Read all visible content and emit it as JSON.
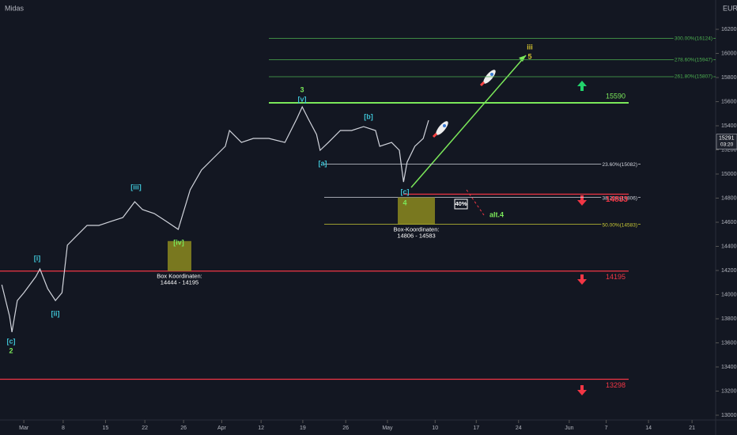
{
  "chart_data": {
    "type": "line",
    "title": "Midas",
    "currency": "EUR",
    "color": "#d1d4dc",
    "x": [
      -3.7,
      -2.4,
      -2.0,
      -1.1,
      0,
      2.0,
      2.7,
      4.0,
      5.3,
      6.4,
      7.3,
      8.6,
      10.6,
      12.6,
      14.6,
      16.6,
      18.6,
      19.9,
      21.9,
      23.9,
      25.9,
      26.5,
      27.9,
      29.8,
      31.8,
      33.8,
      34.5,
      36.5,
      38.5,
      41.1,
      43.8,
      45.8,
      46.7,
      47.7,
      49.1,
      49.7,
      51.1,
      53.1,
      55.0,
      57.0,
      59.0,
      59.7,
      61.7,
      63.0,
      63.7,
      64.3,
      65.6,
      67.0,
      67.9
    ],
    "values": [
      14082,
      13820,
      13689,
      13951,
      14016,
      14148,
      14213,
      14049,
      13951,
      14016,
      14410,
      14475,
      14574,
      14574,
      14607,
      14639,
      14770,
      14705,
      14672,
      14607,
      14541,
      14639,
      14869,
      15033,
      15131,
      15230,
      15361,
      15262,
      15295,
      15295,
      15262,
      15459,
      15557,
      15459,
      15328,
      15197,
      15262,
      15361,
      15361,
      15393,
      15361,
      15230,
      15262,
      15197,
      14934,
      15098,
      15230,
      15295,
      15446
    ],
    "xlim": [
      -4.0,
      115.4
    ],
    "ylim": [
      12967,
      16443
    ],
    "yticks": [
      13000,
      13200,
      13400,
      13600,
      13800,
      14000,
      14200,
      14400,
      14600,
      14800,
      15000,
      15200,
      15400,
      15600,
      15800,
      16000,
      16200
    ],
    "xticks": [
      {
        "value": 0,
        "label": "Mar"
      },
      {
        "value": 6.6,
        "label": "8"
      },
      {
        "value": 13.7,
        "label": "15"
      },
      {
        "value": 20.3,
        "label": "22"
      },
      {
        "value": 26.8,
        "label": "26"
      },
      {
        "value": 33.2,
        "label": "Apr"
      },
      {
        "value": 39.8,
        "label": "12"
      },
      {
        "value": 46.8,
        "label": "19"
      },
      {
        "value": 54.0,
        "label": "26"
      },
      {
        "value": 61.0,
        "label": "May"
      },
      {
        "value": 69.0,
        "label": "10"
      },
      {
        "value": 75.9,
        "label": "17"
      },
      {
        "value": 83.0,
        "label": "24"
      },
      {
        "value": 91.5,
        "label": "Jun"
      },
      {
        "value": 97.7,
        "label": "7"
      },
      {
        "value": 104.8,
        "label": "14"
      },
      {
        "value": 112.1,
        "label": "21"
      }
    ],
    "last_price": 15291,
    "countdown": "03:20",
    "fib_levels": [
      {
        "value": 16124,
        "label": "300.00%(16124)",
        "color": "#4caf50"
      },
      {
        "value": 15947,
        "label": "278.60%(15947)",
        "color": "#4caf50"
      },
      {
        "value": 15807,
        "label": "261.80%(15807)",
        "color": "#4caf50"
      },
      {
        "value": 15082,
        "label": "23.60%(15082)",
        "color": "#d1d4dc"
      },
      {
        "value": 14806,
        "label": "38.20%(14806)",
        "color": "#d1d4dc"
      },
      {
        "value": 14583,
        "label": "50.00%(14583)",
        "color": "#c9c935"
      }
    ],
    "levels": [
      {
        "value": 15590,
        "color": "#7be85a"
      },
      {
        "value": 14833,
        "color": "#f23645"
      },
      {
        "value": 14195,
        "color": "#f23645"
      },
      {
        "value": 13298,
        "color": "#f23645"
      }
    ],
    "boxes": [
      {
        "title": "Box Koordinaten:",
        "top": 14444,
        "bottom": 14195,
        "range": "14444 - 14195"
      },
      {
        "title": "Box-Koordinaten:",
        "top": 14806,
        "bottom": 14583,
        "range": "14806 - 14583"
      }
    ],
    "annotations": [
      "[c]",
      "2",
      "[i]",
      "[ii]",
      "[iii]",
      "[iv]",
      "3",
      "[v]",
      "[a]",
      "[b]",
      "[c]",
      "4",
      "iii",
      "5",
      "alt.4",
      "40%"
    ]
  }
}
